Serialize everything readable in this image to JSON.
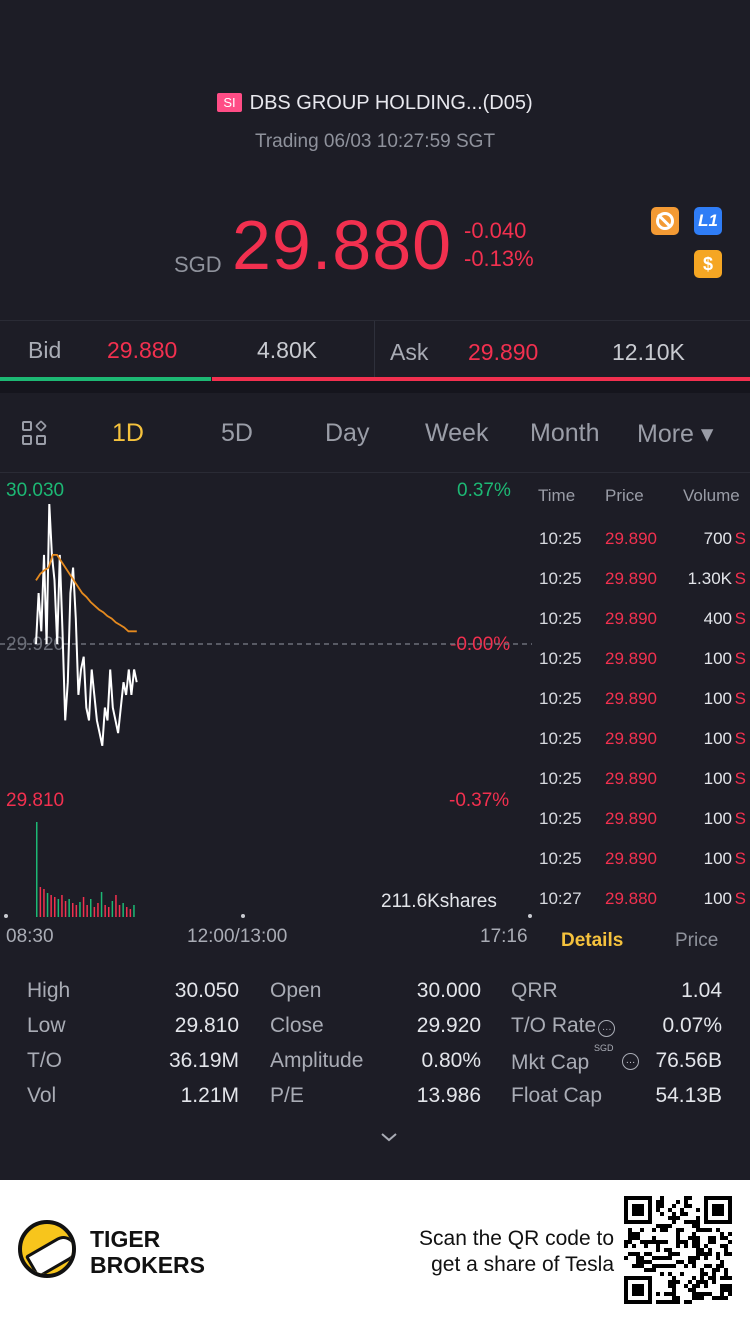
{
  "header": {
    "market_badge": "SI",
    "title": "DBS GROUP HOLDING...(D05)",
    "status": "Trading 06/03 10:27:59 SGT",
    "currency": "SGD",
    "price": "29.880",
    "change": "-0.040",
    "change_pct": "-0.13%",
    "icons": [
      "no-short-icon",
      "level1-icon",
      "dollar-icon"
    ],
    "l1_label": "L1",
    "dollar_label": "$"
  },
  "bid_ask": {
    "bid_label": "Bid",
    "bid_price": "29.880",
    "bid_vol": "4.80K",
    "ask_label": "Ask",
    "ask_price": "29.890",
    "ask_vol": "12.10K",
    "bid_ratio": 0.283
  },
  "tabs": [
    {
      "label": "1D",
      "active": true
    },
    {
      "label": "5D"
    },
    {
      "label": "Day"
    },
    {
      "label": "Week"
    },
    {
      "label": "Month"
    },
    {
      "label": "More ▾"
    }
  ],
  "chart": {
    "high_price": "30.030",
    "high_pct": "0.37%",
    "mid_price": "29.920",
    "mid_pct": "-0.00%",
    "low_price": "29.810",
    "low_pct": "-0.37%",
    "volume_label": "211.6Kshares",
    "time_start": "08:30",
    "time_mid": "12:00/13:00",
    "time_end": "17:16"
  },
  "chart_data": {
    "type": "line",
    "title": "",
    "ylim": [
      29.81,
      30.03
    ],
    "reference": 29.92,
    "series": [
      {
        "values": [
          29.92,
          29.96,
          29.93,
          29.99,
          29.92,
          30.03,
          29.99,
          29.97,
          29.92,
          29.99,
          29.93,
          29.86,
          29.89,
          29.96,
          29.98,
          29.94,
          29.88,
          29.9,
          29.91,
          29.87,
          29.86,
          29.9,
          29.88,
          29.86,
          29.85,
          29.84,
          29.87,
          29.86,
          29.9,
          29.87,
          29.86,
          29.85,
          29.87,
          29.89,
          29.88,
          29.9,
          29.88,
          29.9,
          29.89
        ]
      },
      {
        "values": [
          29.97,
          29.975,
          29.978,
          29.98,
          29.99,
          29.99,
          29.985,
          29.98,
          29.975,
          29.97,
          29.965,
          29.96,
          29.957,
          29.953,
          29.95,
          29.947,
          29.945,
          29.942,
          29.94,
          29.937,
          29.935,
          29.933,
          29.93,
          29.93,
          29.93
        ]
      }
    ]
  },
  "tick_table": {
    "headers": [
      "Time",
      "Price",
      "Volume"
    ],
    "rows": [
      {
        "time": "10:25",
        "price": "29.890",
        "vol": "700"
      },
      {
        "time": "10:25",
        "price": "29.890",
        "vol": "1.30K"
      },
      {
        "time": "10:25",
        "price": "29.890",
        "vol": "400"
      },
      {
        "time": "10:25",
        "price": "29.890",
        "vol": "100"
      },
      {
        "time": "10:25",
        "price": "29.890",
        "vol": "100"
      },
      {
        "time": "10:25",
        "price": "29.890",
        "vol": "100"
      },
      {
        "time": "10:25",
        "price": "29.890",
        "vol": "100"
      },
      {
        "time": "10:25",
        "price": "29.890",
        "vol": "100"
      },
      {
        "time": "10:25",
        "price": "29.890",
        "vol": "100"
      },
      {
        "time": "10:27",
        "price": "29.880",
        "vol": "100"
      }
    ],
    "side_mark": "S",
    "tab_details": "Details",
    "tab_price": "Price"
  },
  "stats": {
    "high_label": "High",
    "high": "30.050",
    "low_label": "Low",
    "low": "29.810",
    "to_label": "T/O",
    "to": "36.19M",
    "vol_label": "Vol",
    "vol": "1.21M",
    "open_label": "Open",
    "open": "30.000",
    "close_label": "Close",
    "close": "29.920",
    "amplitude_label": "Amplitude",
    "amplitude": "0.80%",
    "pe_label": "P/E",
    "pe": "13.986",
    "qrr_label": "QRR",
    "qrr": "1.04",
    "torate_label": "T/O Rate",
    "torate": "0.07%",
    "mktcap_label": "Mkt Cap",
    "mktcap_unit": "SGD",
    "mktcap": "76.56B",
    "floatcap_label": "Float Cap",
    "floatcap": "54.13B"
  },
  "footer": {
    "brand_line1": "TIGER",
    "brand_line2": "BROKERS",
    "promo_line1": "Scan the QR code to",
    "promo_line2": "get a share of Tesla"
  },
  "colors": {
    "up": "#1db874",
    "down": "#f2304f",
    "accent": "#f5c23d",
    "avg_line": "#e58a1f",
    "background": "#1d1d26"
  }
}
